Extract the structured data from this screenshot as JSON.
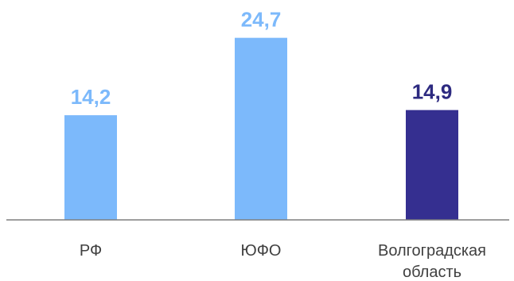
{
  "chart_data": {
    "type": "bar",
    "categories": [
      [
        "РФ"
      ],
      [
        "ЮФО"
      ],
      [
        "Волгоградская",
        "область"
      ]
    ],
    "values": [
      14.2,
      24.7,
      14.9
    ],
    "value_labels": [
      "14,2",
      "24,7",
      "14,9"
    ],
    "bar_colors": [
      "#7cb9fb",
      "#7cb9fb",
      "#352f90"
    ],
    "label_colors": [
      "#7cb9fb",
      "#7cb9fb",
      "#2d2a80"
    ],
    "axis_color": "#7f7f7f",
    "ylim": [
      0,
      26.6
    ],
    "grid": false,
    "legend": "none"
  }
}
